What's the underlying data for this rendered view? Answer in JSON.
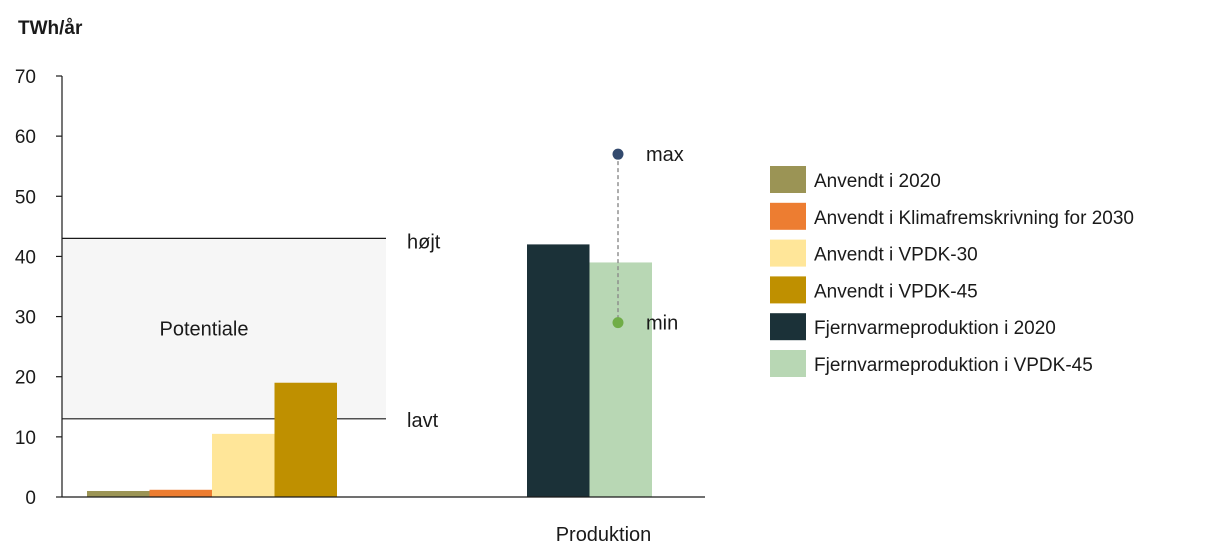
{
  "chart_data": {
    "type": "bar",
    "unit_label": "TWh/år",
    "ylim": [
      0,
      70
    ],
    "yticks": [
      0,
      10,
      20,
      30,
      40,
      50,
      60,
      70
    ],
    "grid": false,
    "legend_position": "right",
    "groups": [
      {
        "label": "",
        "bars": [
          {
            "series": "Anvendt i 2020",
            "value": 1
          },
          {
            "series": "Anvendt i Klimafremskrivning for 2030",
            "value": 1.2
          },
          {
            "series": "Anvendt i VPDK-30",
            "value": 10.5
          },
          {
            "series": "Anvendt i VPDK-45",
            "value": 19
          }
        ]
      },
      {
        "label": "Produktion",
        "bars": [
          {
            "series": "Fjernvarmeproduktion i 2020",
            "value": 42
          },
          {
            "series": "Fjernvarmeproduktion i VPDK-45",
            "value": 39
          }
        ]
      }
    ],
    "series": [
      {
        "name": "Anvendt i 2020",
        "color": "#9b9455"
      },
      {
        "name": "Anvendt i Klimafremskrivning for 2030",
        "color": "#ed7d31"
      },
      {
        "name": "Anvendt i VPDK-30",
        "color": "#ffe699"
      },
      {
        "name": "Anvendt i VPDK-45",
        "color": "#bf9000"
      },
      {
        "name": "Fjernvarmeproduktion i 2020",
        "color": "#1b3138"
      },
      {
        "name": "Fjernvarmeproduktion i VPDK-45",
        "color": "#b8d7b4"
      }
    ],
    "potential_band": {
      "label": "Potentiale",
      "high": 43,
      "high_label": "højt",
      "low": 13,
      "low_label": "lavt",
      "fill_color": "#f6f6f6"
    },
    "range_indicator": {
      "max": 57,
      "max_label": "max",
      "max_color": "#334a6e",
      "min": 29,
      "min_label": "min",
      "min_color": "#70ad47"
    }
  }
}
